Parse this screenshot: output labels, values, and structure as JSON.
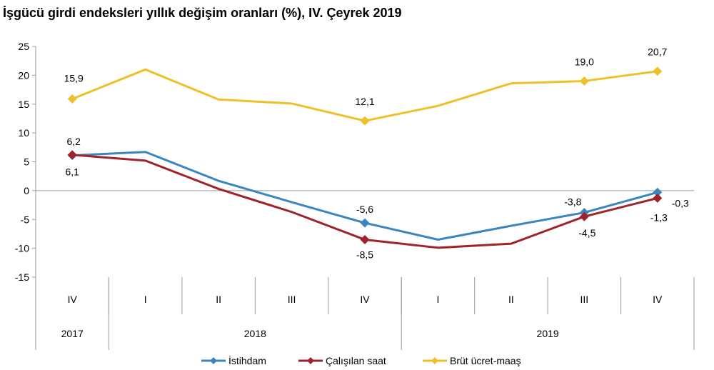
{
  "chart_data": {
    "type": "line",
    "title": "İşgücü girdi endeksleri yıllık değişim oranları (%), IV. Çeyrek 2019",
    "categories": [
      "IV",
      "I",
      "II",
      "III",
      "IV",
      "I",
      "II",
      "III",
      "IV"
    ],
    "years": [
      {
        "label": "2017",
        "span": 1
      },
      {
        "label": "2018",
        "span": 4
      },
      {
        "label": "2019",
        "span": 4
      }
    ],
    "ylim": [
      -15,
      25
    ],
    "yticks": [
      "25",
      "20",
      "15",
      "10",
      "5",
      "0",
      "-5",
      "-10",
      "-15"
    ],
    "series": [
      {
        "name": "İstihdam",
        "color": "#3a86c0",
        "values": [
          6.1,
          6.7,
          1.7,
          -2.0,
          -5.6,
          -8.5,
          -6.1,
          -3.8,
          -0.3
        ],
        "labels": [
          {
            "index": 0,
            "text": "6,1"
          },
          {
            "index": 4,
            "text": "-5,6"
          },
          {
            "index": 7,
            "text": "-3,8"
          },
          {
            "index": 8,
            "text": "-0,3"
          }
        ]
      },
      {
        "name": "Çalışılan saat",
        "color": "#a0222a",
        "values": [
          6.2,
          5.2,
          0.3,
          -3.7,
          -8.5,
          -9.9,
          -9.2,
          -4.5,
          -1.3
        ],
        "labels": [
          {
            "index": 0,
            "text": "6,2"
          },
          {
            "index": 4,
            "text": "-8,5"
          },
          {
            "index": 7,
            "text": "-4,5"
          },
          {
            "index": 8,
            "text": "-1,3"
          }
        ]
      },
      {
        "name": "Brüt ücret-maaş",
        "color": "#f0c02a",
        "values": [
          15.9,
          21.0,
          15.8,
          15.1,
          12.1,
          14.7,
          18.6,
          19.0,
          20.7
        ],
        "labels": [
          {
            "index": 0,
            "text": "15,9"
          },
          {
            "index": 4,
            "text": "12,1"
          },
          {
            "index": 7,
            "text": "19,0"
          },
          {
            "index": 8,
            "text": "20,7"
          }
        ]
      }
    ],
    "markers": [
      0,
      4,
      7,
      8
    ],
    "legend": "bottom"
  }
}
